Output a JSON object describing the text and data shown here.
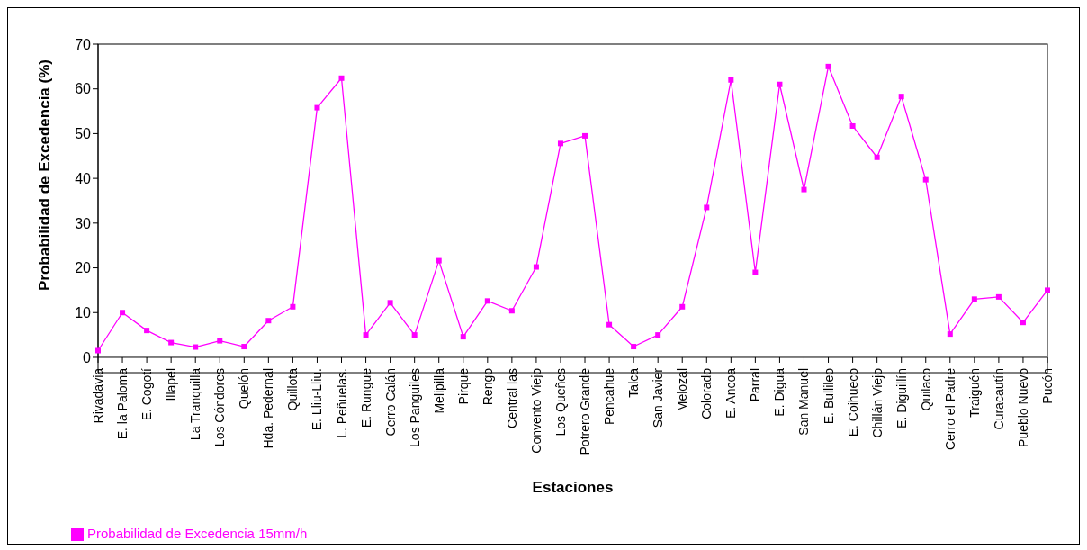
{
  "chart_data": {
    "type": "line",
    "xlabel": "Estaciones",
    "ylabel": "Probabilidad de Excedencia (%)",
    "categories": [
      "Rivadavia",
      "E. la Paloma",
      "E. Cogotí",
      "Illapel",
      "La Tranquilla",
      "Los Cóndores",
      "Quelón",
      "Hda. Pedernal",
      "Quillota",
      "E. Lliu-Lliu.",
      "L. Peñuelas.",
      "E. Rungue",
      "Cerro Calán",
      "Los Panguiles",
      "Melipilla",
      "Pirque",
      "Rengo",
      "Central las",
      "Convento Viejo",
      "Los Queñes",
      "Potrero Grande",
      "Pencahue",
      "Talca",
      "San Javier",
      "Melozal",
      "Colorado",
      "E. Ancoa",
      "Parral",
      "E. Digua",
      "San Manuel",
      "E. Bullileo",
      "E. Coihueco",
      "Chillán Viejo",
      "E. Diguillín",
      "Quilaco",
      "Cerro el Padre",
      "Traiguén",
      "Curacautín",
      "Pueblo Nuevo",
      "Pucón"
    ],
    "series": [
      {
        "name": "Probabilidad de Excedencia 15mm/h",
        "color": "#ff00ff",
        "values": [
          1.5,
          10,
          6,
          3.3,
          2.3,
          3.7,
          2.4,
          8.2,
          11.3,
          55.8,
          62.4,
          5,
          12.2,
          5,
          21.6,
          4.6,
          12.6,
          10.4,
          20.2,
          47.8,
          49.5,
          7.3,
          2.4,
          5,
          11.3,
          33.5,
          62,
          19,
          61,
          37.5,
          65,
          51.7,
          44.7,
          58.3,
          39.7,
          5.2,
          13,
          13.5,
          7.8,
          15
        ]
      }
    ],
    "ylim": [
      0,
      70
    ],
    "yticks": [
      0,
      10,
      20,
      30,
      40,
      50,
      60,
      70
    ],
    "grid": false,
    "legend": "bottom left",
    "marker": "square",
    "line_style": "solid"
  }
}
